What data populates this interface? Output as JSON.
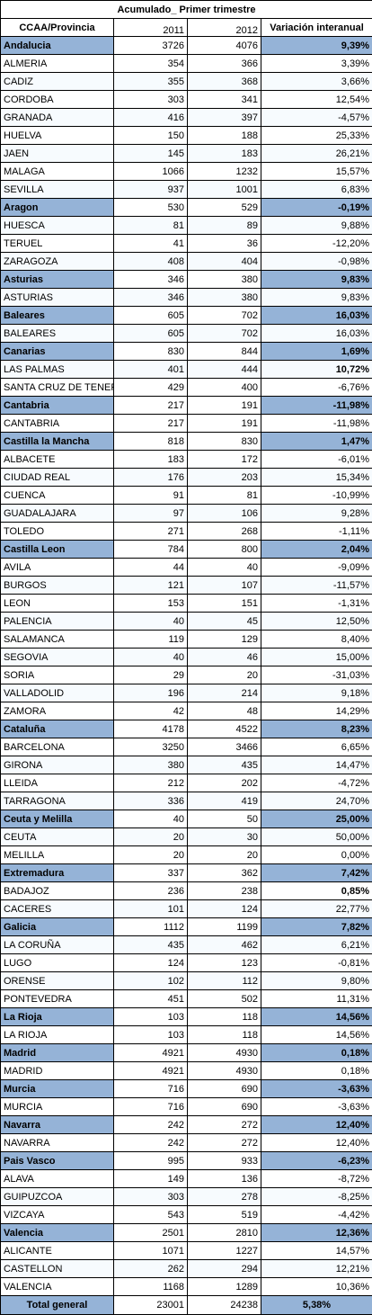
{
  "title": "Acumulado_ Primer trimestre",
  "headers": {
    "name": "CCAA/Provincia",
    "y2011": "2011",
    "y2012": "2012",
    "variation": "Variación interanual"
  },
  "colors": {
    "region_fill": "#95b3d7",
    "border": "#000000"
  },
  "groups": [
    {
      "name": "Andalucia",
      "v2011": "3726",
      "v2012": "4076",
      "var": "9,39%",
      "items": [
        {
          "name": "ALMERIA",
          "v2011": "354",
          "v2012": "366",
          "var": "3,39%"
        },
        {
          "name": "CADIZ",
          "v2011": "355",
          "v2012": "368",
          "var": "3,66%"
        },
        {
          "name": "CORDOBA",
          "v2011": "303",
          "v2012": "341",
          "var": "12,54%"
        },
        {
          "name": "GRANADA",
          "v2011": "416",
          "v2012": "397",
          "var": "-4,57%"
        },
        {
          "name": "HUELVA",
          "v2011": "150",
          "v2012": "188",
          "var": "25,33%"
        },
        {
          "name": "JAEN",
          "v2011": "145",
          "v2012": "183",
          "var": "26,21%"
        },
        {
          "name": "MALAGA",
          "v2011": "1066",
          "v2012": "1232",
          "var": "15,57%"
        },
        {
          "name": "SEVILLA",
          "v2011": "937",
          "v2012": "1001",
          "var": "6,83%"
        }
      ]
    },
    {
      "name": "Aragon",
      "v2011": "530",
      "v2012": "529",
      "var": "-0,19%",
      "items": [
        {
          "name": "HUESCA",
          "v2011": "81",
          "v2012": "89",
          "var": "9,88%"
        },
        {
          "name": "TERUEL",
          "v2011": "41",
          "v2012": "36",
          "var": "-12,20%"
        },
        {
          "name": "ZARAGOZA",
          "v2011": "408",
          "v2012": "404",
          "var": "-0,98%"
        }
      ]
    },
    {
      "name": "Asturias",
      "v2011": "346",
      "v2012": "380",
      "var": "9,83%",
      "items": [
        {
          "name": "ASTURIAS",
          "v2011": "346",
          "v2012": "380",
          "var": "9,83%"
        }
      ]
    },
    {
      "name": "Baleares",
      "v2011": "605",
      "v2012": "702",
      "var": "16,03%",
      "items": [
        {
          "name": "BALEARES",
          "v2011": "605",
          "v2012": "702",
          "var": "16,03%"
        }
      ]
    },
    {
      "name": "Canarias",
      "v2011": "830",
      "v2012": "844",
      "var": "1,69%",
      "items": [
        {
          "name": "LAS PALMAS",
          "v2011": "401",
          "v2012": "444",
          "var": "10,72%",
          "bold": true,
          "indent": "shift"
        },
        {
          "name": "SANTA CRUZ DE TENER",
          "v2011": "429",
          "v2012": "400",
          "var": "-6,76%"
        }
      ]
    },
    {
      "name": "Cantabria",
      "v2011": "217",
      "v2012": "191",
      "var": "-11,98%",
      "items": [
        {
          "name": "CANTABRIA",
          "v2011": "217",
          "v2012": "191",
          "var": "-11,98%"
        }
      ]
    },
    {
      "name": "Castilla la Mancha",
      "v2011": "818",
      "v2012": "830",
      "var": "1,47%",
      "items": [
        {
          "name": "ALBACETE",
          "v2011": "183",
          "v2012": "172",
          "var": "-6,01%"
        },
        {
          "name": "CIUDAD REAL",
          "v2011": "176",
          "v2012": "203",
          "var": "15,34%"
        },
        {
          "name": "CUENCA",
          "v2011": "91",
          "v2012": "81",
          "var": "-10,99%"
        },
        {
          "name": "GUADALAJARA",
          "v2011": "97",
          "v2012": "106",
          "var": "9,28%"
        },
        {
          "name": "TOLEDO",
          "v2011": "271",
          "v2012": "268",
          "var": "-1,11%"
        }
      ]
    },
    {
      "name": "Castilla Leon",
      "v2011": "784",
      "v2012": "800",
      "var": "2,04%",
      "items": [
        {
          "name": "AVILA",
          "v2011": "44",
          "v2012": "40",
          "var": "-9,09%"
        },
        {
          "name": "BURGOS",
          "v2011": "121",
          "v2012": "107",
          "var": "-11,57%"
        },
        {
          "name": "LEON",
          "v2011": "153",
          "v2012": "151",
          "var": "-1,31%"
        },
        {
          "name": "PALENCIA",
          "v2011": "40",
          "v2012": "45",
          "var": "12,50%"
        },
        {
          "name": "SALAMANCA",
          "v2011": "119",
          "v2012": "129",
          "var": "8,40%"
        },
        {
          "name": "SEGOVIA",
          "v2011": "40",
          "v2012": "46",
          "var": "15,00%"
        },
        {
          "name": "SORIA",
          "v2011": "29",
          "v2012": "20",
          "var": "-31,03%"
        },
        {
          "name": "VALLADOLID",
          "v2011": "196",
          "v2012": "214",
          "var": "9,18%"
        },
        {
          "name": "ZAMORA",
          "v2011": "42",
          "v2012": "48",
          "var": "14,29%"
        }
      ]
    },
    {
      "name": "Cataluña",
      "v2011": "4178",
      "v2012": "4522",
      "var": "8,23%",
      "items": [
        {
          "name": "BARCELONA",
          "v2011": "3250",
          "v2012": "3466",
          "var": "6,65%"
        },
        {
          "name": "GIRONA",
          "v2011": "380",
          "v2012": "435",
          "var": "14,47%"
        },
        {
          "name": "LLEIDA",
          "v2011": "212",
          "v2012": "202",
          "var": "-4,72%"
        },
        {
          "name": "TARRAGONA",
          "v2011": "336",
          "v2012": "419",
          "var": "24,70%"
        }
      ]
    },
    {
      "name": "Ceuta y Melilla",
      "v2011": "40",
      "v2012": "50",
      "var": "25,00%",
      "items": [
        {
          "name": "CEUTA",
          "v2011": "20",
          "v2012": "30",
          "var": "50,00%"
        },
        {
          "name": "MELILLA",
          "v2011": "20",
          "v2012": "20",
          "var": "0,00%"
        }
      ]
    },
    {
      "name": "Extremadura",
      "v2011": "337",
      "v2012": "362",
      "var": "7,42%",
      "items": [
        {
          "name": "BADAJOZ",
          "v2011": "236",
          "v2012": "238",
          "var": "0,85%",
          "bold": true,
          "indent": "flush"
        },
        {
          "name": "CACERES",
          "v2011": "101",
          "v2012": "124",
          "var": "22,77%"
        }
      ]
    },
    {
      "name": "Galicia",
      "v2011": "1112",
      "v2012": "1199",
      "var": "7,82%",
      "items": [
        {
          "name": "LA CORUÑA",
          "v2011": "435",
          "v2012": "462",
          "var": "6,21%"
        },
        {
          "name": "LUGO",
          "v2011": "124",
          "v2012": "123",
          "var": "-0,81%"
        },
        {
          "name": "ORENSE",
          "v2011": "102",
          "v2012": "112",
          "var": "9,80%"
        },
        {
          "name": "PONTEVEDRA",
          "v2011": "451",
          "v2012": "502",
          "var": "11,31%"
        }
      ]
    },
    {
      "name": "La Rioja",
      "v2011": "103",
      "v2012": "118",
      "var": "14,56%",
      "items": [
        {
          "name": "LA RIOJA",
          "v2011": "103",
          "v2012": "118",
          "var": "14,56%"
        }
      ]
    },
    {
      "name": "Madrid",
      "v2011": "4921",
      "v2012": "4930",
      "var": "0,18%",
      "items": [
        {
          "name": "MADRID",
          "v2011": "4921",
          "v2012": "4930",
          "var": "0,18%"
        }
      ]
    },
    {
      "name": "Murcia",
      "v2011": "716",
      "v2012": "690",
      "var": "-3,63%",
      "items": [
        {
          "name": "MURCIA",
          "v2011": "716",
          "v2012": "690",
          "var": "-3,63%"
        }
      ]
    },
    {
      "name": "Navarra",
      "v2011": "242",
      "v2012": "272",
      "var": "12,40%",
      "items": [
        {
          "name": "NAVARRA",
          "v2011": "242",
          "v2012": "272",
          "var": "12,40%"
        }
      ]
    },
    {
      "name": "Pais Vasco",
      "v2011": "995",
      "v2012": "933",
      "var": "-6,23%",
      "items": [
        {
          "name": "ALAVA",
          "v2011": "149",
          "v2012": "136",
          "var": "-8,72%"
        },
        {
          "name": "GUIPUZCOA",
          "v2011": "303",
          "v2012": "278",
          "var": "-8,25%"
        },
        {
          "name": "VIZCAYA",
          "v2011": "543",
          "v2012": "519",
          "var": "-4,42%"
        }
      ]
    },
    {
      "name": "Valencia",
      "v2011": "2501",
      "v2012": "2810",
      "var": "12,36%",
      "items": [
        {
          "name": "ALICANTE",
          "v2011": "1071",
          "v2012": "1227",
          "var": "14,57%"
        },
        {
          "name": "CASTELLON",
          "v2011": "262",
          "v2012": "294",
          "var": "12,21%"
        },
        {
          "name": "VALENCIA",
          "v2011": "1168",
          "v2012": "1289",
          "var": "10,36%"
        }
      ]
    }
  ],
  "total": {
    "name": "Total general",
    "v2011": "23001",
    "v2012": "24238",
    "var": "5,38%"
  }
}
